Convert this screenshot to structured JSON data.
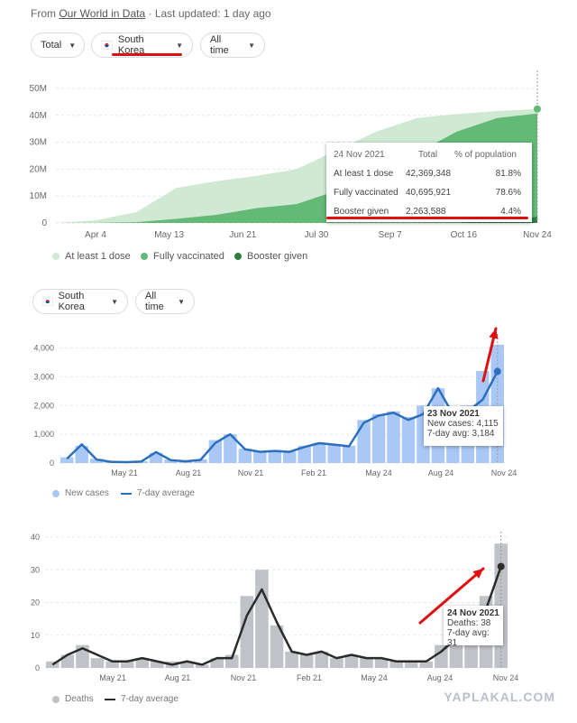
{
  "source": {
    "prefix": "From",
    "link": "Our World in Data",
    "updated": "· Last updated: 1 day ago"
  },
  "controls1": {
    "metric": "Total",
    "country": "South Korea",
    "range": "All time"
  },
  "controls2": {
    "country": "South Korea",
    "range": "All time"
  },
  "colors": {
    "dose1": "#cfe9d3",
    "full": "#63b976",
    "booster": "#2f7d43",
    "cases": "#a9c8f5",
    "cases_line": "#2c6fbe",
    "deaths": "#bfc2c6",
    "deaths_line": "#2b2b2b",
    "annot": "#e01010"
  },
  "chart_data": [
    {
      "type": "area",
      "x_ticks": [
        "Apr 4",
        "May 13",
        "Jun 21",
        "Jul 30",
        "Sep 7",
        "Oct 16",
        "Nov 24"
      ],
      "y_ticks": [
        "0",
        "10M",
        "20M",
        "30M",
        "40M",
        "50M"
      ],
      "ylim": [
        0,
        50000000
      ],
      "x": [
        "Feb 26",
        "Apr 4",
        "May 13",
        "Jun 10",
        "Jun 21",
        "Jul 15",
        "Jul 30",
        "Aug 20",
        "Sep 7",
        "Sep 25",
        "Oct 16",
        "Nov 5",
        "Nov 24"
      ],
      "series": [
        {
          "name": "At least 1 dose",
          "values": [
            0,
            1000000,
            4000000,
            13000000,
            15500000,
            17500000,
            20000000,
            27000000,
            34000000,
            39000000,
            40500000,
            41600000,
            42369348
          ]
        },
        {
          "name": "Fully vaccinated",
          "values": [
            0,
            50000,
            300000,
            1500000,
            3000000,
            5500000,
            7000000,
            12000000,
            18000000,
            26000000,
            34000000,
            39000000,
            40695921
          ]
        },
        {
          "name": "Booster given",
          "values": [
            0,
            0,
            0,
            0,
            0,
            0,
            0,
            0,
            0,
            0,
            100000,
            800000,
            2263588
          ]
        }
      ],
      "tooltip": {
        "date": "24 Nov 2021",
        "col_total": "Total",
        "col_pct": "% of population",
        "rows": [
          {
            "label": "At least 1 dose",
            "total": "42,369,348",
            "pct": "81.8%"
          },
          {
            "label": "Fully vaccinated",
            "total": "40,695,921",
            "pct": "78.6%"
          },
          {
            "label": "Booster given",
            "total": "2,263,588",
            "pct": "4.4%"
          }
        ]
      }
    },
    {
      "type": "bar",
      "x_ticks": [
        "May 21",
        "Aug 21",
        "Nov 21",
        "Feb 21",
        "May 24",
        "Aug 24",
        "Nov 24"
      ],
      "y_ticks": [
        "0",
        "1,000",
        "2,000",
        "3,000",
        "4,000"
      ],
      "ylim": [
        0,
        4300
      ],
      "series": [
        {
          "name": "New cases",
          "values": [
            200,
            600,
            150,
            60,
            40,
            60,
            350,
            120,
            80,
            130,
            800,
            1000,
            500,
            400,
            450,
            400,
            600,
            700,
            650,
            600,
            1500,
            1700,
            1800,
            1600,
            2000,
            2600,
            1800,
            2000,
            3200,
            4115
          ]
        },
        {
          "name": "7-day average",
          "values": [
            150,
            650,
            120,
            40,
            30,
            50,
            380,
            100,
            60,
            110,
            700,
            1000,
            480,
            390,
            420,
            390,
            560,
            690,
            640,
            580,
            1400,
            1650,
            1750,
            1500,
            1700,
            2600,
            1700,
            1800,
            2200,
            3184
          ]
        }
      ],
      "tooltip": {
        "date": "23 Nov 2021",
        "line1": "New cases: 4,115",
        "line2": "7-day avg: 3,184"
      }
    },
    {
      "type": "bar",
      "x_ticks": [
        "May 21",
        "Aug 21",
        "Nov 21",
        "Feb 21",
        "May 24",
        "Aug 24",
        "Nov 24"
      ],
      "y_ticks": [
        "0",
        "10",
        "20",
        "30",
        "40"
      ],
      "ylim": [
        0,
        40
      ],
      "series": [
        {
          "name": "Deaths",
          "values": [
            2,
            4,
            7,
            3,
            2,
            2,
            3,
            2,
            2,
            2,
            1,
            3,
            4,
            22,
            30,
            13,
            5,
            4,
            5,
            3,
            4,
            3,
            3,
            2,
            2,
            2,
            7,
            11,
            9,
            22,
            38
          ]
        },
        {
          "name": "7-day average",
          "values": [
            1,
            4,
            6,
            4,
            2,
            2,
            3,
            2,
            1,
            2,
            1,
            3,
            3,
            16,
            24,
            14,
            5,
            4,
            5,
            3,
            4,
            3,
            3,
            2,
            2,
            2,
            5,
            9,
            9,
            18,
            31
          ]
        }
      ],
      "tooltip": {
        "date": "24 Nov 2021",
        "line1": "Deaths: 38",
        "line2": "7-day avg: 31"
      }
    }
  ],
  "watermark": "YAPLAKAL.COM"
}
